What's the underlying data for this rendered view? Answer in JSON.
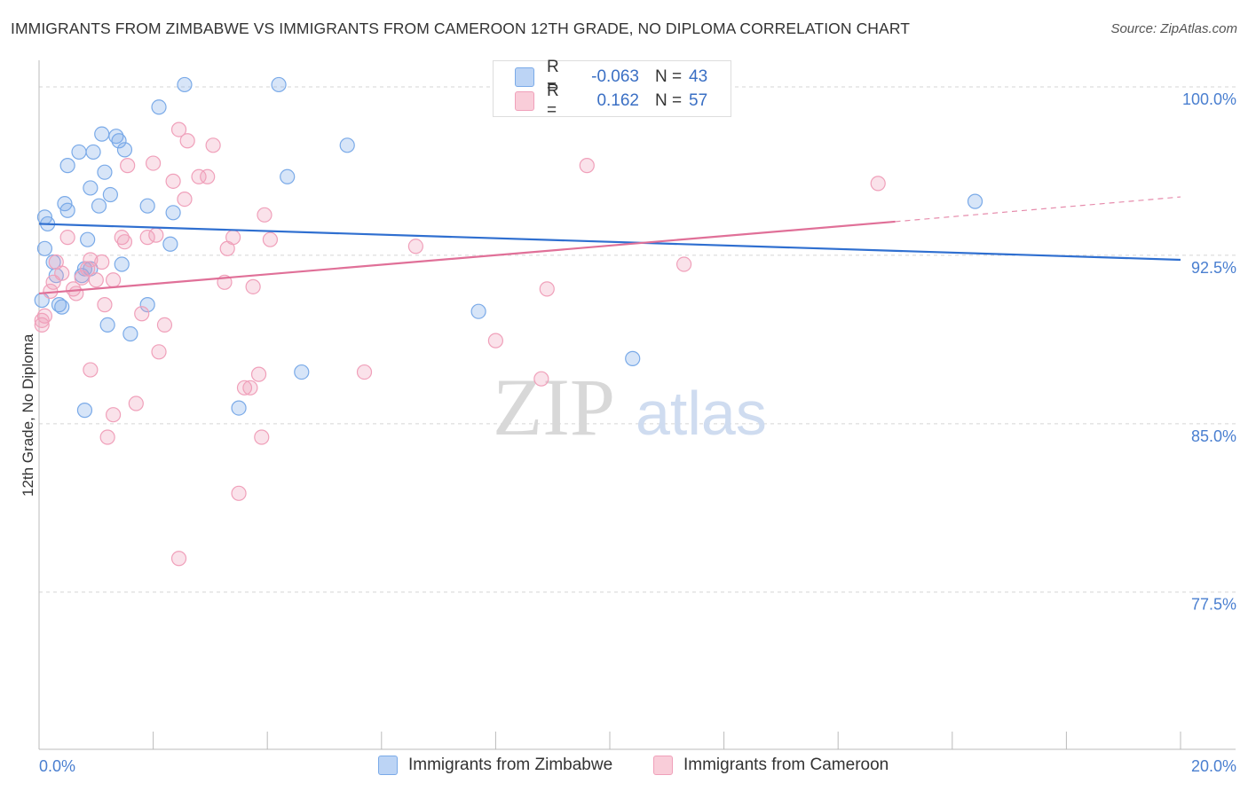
{
  "header": {
    "title": "IMMIGRANTS FROM ZIMBABWE VS IMMIGRANTS FROM CAMEROON 12TH GRADE, NO DIPLOMA CORRELATION CHART",
    "source": "Source: ZipAtlas.com"
  },
  "legend": {
    "r_label": "R =",
    "n_label": "N =",
    "rows": [
      {
        "r": "-0.063",
        "n": "43"
      },
      {
        "r": "0.162",
        "n": "57"
      }
    ]
  },
  "watermark": {
    "zip": "ZIP",
    "atlas": "atlas"
  },
  "chart_data": {
    "type": "scatter",
    "title": "IMMIGRANTS FROM ZIMBABWE VS IMMIGRANTS FROM CAMEROON 12TH GRADE, NO DIPLOMA CORRELATION CHART",
    "xlabel": "",
    "ylabel": "12th Grade, No Diploma",
    "xlim": [
      0,
      20
    ],
    "ylim": [
      70.5,
      101.5
    ],
    "x_tick_labels": [
      "0.0%",
      "20.0%"
    ],
    "y_ticks": [
      77.5,
      85.0,
      92.5,
      100.0
    ],
    "y_tick_labels": [
      "77.5%",
      "85.0%",
      "92.5%",
      "100.0%"
    ],
    "grid": "horizontal-dashed",
    "colors": {
      "zimbabwe": "#7aaae8",
      "cameroon": "#f0a0ba",
      "zimbabwe_line": "#2f6fd0",
      "cameroon_line": "#e07098"
    },
    "series": [
      {
        "name": "Immigrants from Zimbabwe",
        "r": -0.063,
        "n": 43,
        "trend": {
          "x": [
            0,
            20
          ],
          "y": [
            93.9,
            92.3
          ]
        },
        "points": [
          [
            0.1,
            94.2
          ],
          [
            0.15,
            93.9
          ],
          [
            0.1,
            92.8
          ],
          [
            0.25,
            92.2
          ],
          [
            0.3,
            91.6
          ],
          [
            0.35,
            90.3
          ],
          [
            0.4,
            90.2
          ],
          [
            0.45,
            94.8
          ],
          [
            0.5,
            94.5
          ],
          [
            0.5,
            96.5
          ],
          [
            0.7,
            97.1
          ],
          [
            0.8,
            91.9
          ],
          [
            0.75,
            91.6
          ],
          [
            0.85,
            93.2
          ],
          [
            0.9,
            95.5
          ],
          [
            0.95,
            97.1
          ],
          [
            1.05,
            94.7
          ],
          [
            1.1,
            97.9
          ],
          [
            1.15,
            96.2
          ],
          [
            1.25,
            95.2
          ],
          [
            1.35,
            97.8
          ],
          [
            1.4,
            97.6
          ],
          [
            1.5,
            97.2
          ],
          [
            1.45,
            92.1
          ],
          [
            1.6,
            89.0
          ],
          [
            1.9,
            90.3
          ],
          [
            1.9,
            94.7
          ],
          [
            2.1,
            99.1
          ],
          [
            2.3,
            93.0
          ],
          [
            2.35,
            94.4
          ],
          [
            2.55,
            100.1
          ],
          [
            4.2,
            100.1
          ],
          [
            4.35,
            96.0
          ],
          [
            5.4,
            97.4
          ],
          [
            1.2,
            89.4
          ],
          [
            0.8,
            85.6
          ],
          [
            3.5,
            85.7
          ],
          [
            4.6,
            87.3
          ],
          [
            7.7,
            90.0
          ],
          [
            10.4,
            87.9
          ],
          [
            16.4,
            94.9
          ],
          [
            0.05,
            90.5
          ],
          [
            0.9,
            91.9
          ]
        ]
      },
      {
        "name": "Immigrants from Cameroon",
        "r": 0.162,
        "n": 57,
        "trend": {
          "x": [
            0,
            15
          ],
          "y": [
            90.8,
            94.0
          ]
        },
        "trend_dashed": {
          "x": [
            15,
            20
          ],
          "y": [
            94.0,
            95.1
          ]
        },
        "points": [
          [
            0.05,
            89.4
          ],
          [
            0.1,
            89.8
          ],
          [
            0.2,
            90.9
          ],
          [
            0.25,
            91.3
          ],
          [
            0.3,
            92.2
          ],
          [
            0.4,
            91.7
          ],
          [
            0.5,
            93.3
          ],
          [
            0.6,
            91.0
          ],
          [
            0.65,
            90.8
          ],
          [
            0.75,
            91.5
          ],
          [
            0.85,
            91.9
          ],
          [
            0.9,
            92.3
          ],
          [
            1.0,
            91.4
          ],
          [
            1.1,
            92.2
          ],
          [
            1.15,
            90.3
          ],
          [
            1.3,
            91.4
          ],
          [
            1.45,
            93.3
          ],
          [
            1.5,
            93.1
          ],
          [
            1.55,
            96.5
          ],
          [
            1.8,
            89.9
          ],
          [
            1.9,
            93.3
          ],
          [
            2.0,
            96.6
          ],
          [
            2.05,
            93.4
          ],
          [
            2.1,
            88.2
          ],
          [
            2.2,
            89.4
          ],
          [
            2.35,
            95.8
          ],
          [
            2.45,
            98.1
          ],
          [
            2.55,
            95.0
          ],
          [
            2.6,
            97.6
          ],
          [
            2.8,
            96.0
          ],
          [
            2.95,
            96.0
          ],
          [
            3.05,
            97.4
          ],
          [
            3.25,
            91.3
          ],
          [
            3.3,
            92.8
          ],
          [
            3.4,
            93.3
          ],
          [
            3.5,
            81.9
          ],
          [
            3.6,
            86.6
          ],
          [
            3.7,
            86.6
          ],
          [
            3.75,
            91.1
          ],
          [
            3.85,
            87.2
          ],
          [
            3.9,
            84.4
          ],
          [
            3.95,
            94.3
          ],
          [
            4.05,
            93.2
          ],
          [
            5.7,
            87.3
          ],
          [
            6.6,
            92.9
          ],
          [
            8.0,
            88.7
          ],
          [
            8.8,
            87.0
          ],
          [
            8.9,
            91.0
          ],
          [
            9.6,
            96.5
          ],
          [
            11.3,
            92.1
          ],
          [
            14.7,
            95.7
          ],
          [
            1.3,
            85.4
          ],
          [
            1.7,
            85.9
          ],
          [
            1.2,
            84.4
          ],
          [
            2.45,
            79.0
          ],
          [
            0.05,
            89.6
          ],
          [
            0.9,
            87.4
          ]
        ]
      }
    ]
  },
  "bottom_legend": [
    {
      "label": "Immigrants from Zimbabwe"
    },
    {
      "label": "Immigrants from Cameroon"
    }
  ]
}
